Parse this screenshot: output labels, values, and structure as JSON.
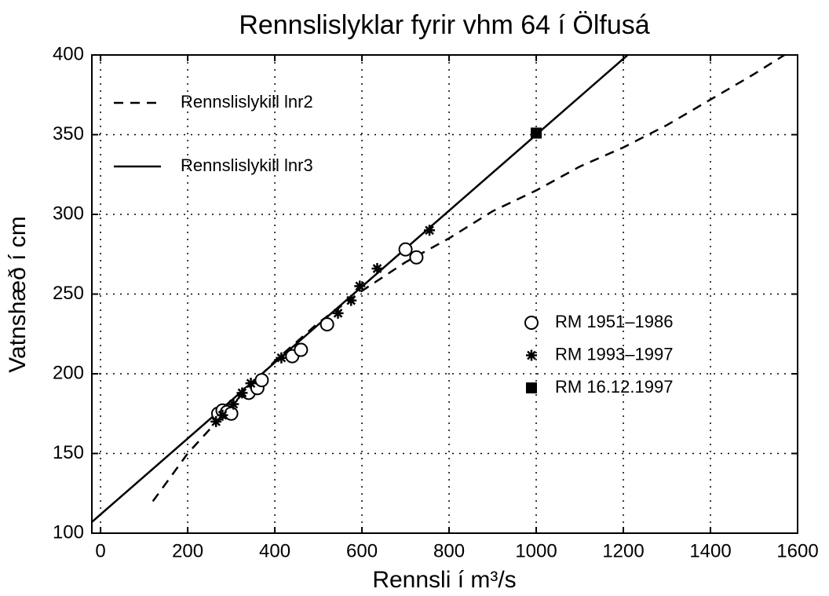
{
  "chart_data": {
    "type": "line",
    "title": "Rennslislyklar fyrir vhm 64 í Ölfusá",
    "x_label": "Rennsli í m³/s",
    "y_label": "Vatnshæð í cm",
    "xlim": [
      -20,
      1600
    ],
    "ylim": [
      100,
      400
    ],
    "xticks": [
      0,
      200,
      400,
      600,
      800,
      1000,
      1200,
      1400,
      1600
    ],
    "yticks": [
      100,
      150,
      200,
      250,
      300,
      350,
      400
    ],
    "grid": true,
    "series": [
      {
        "name": "Rennslislykill lnr2",
        "color": "#000000",
        "style": "dashed",
        "x": [
          120,
          200,
          300,
          400,
          500,
          600,
          700,
          800,
          900,
          1000,
          1100,
          1200,
          1300,
          1400,
          1500,
          1570
        ],
        "values": [
          120,
          150,
          180,
          208,
          232,
          252,
          270,
          285,
          302,
          315,
          330,
          342,
          356,
          372,
          388,
          400
        ]
      },
      {
        "name": "Rennslislykill lnr3",
        "color": "#000000",
        "style": "solid",
        "x": [
          -20,
          1210
        ],
        "values": [
          107,
          400
        ]
      },
      {
        "name": "RM 1951–1986",
        "color": "#000000",
        "marker": "circle",
        "x": [
          270,
          280,
          290,
          300,
          340,
          360,
          370,
          440,
          460,
          520,
          700,
          725
        ],
        "values": [
          175,
          177,
          176,
          175,
          188,
          191,
          196,
          211,
          215,
          231,
          278,
          273
        ]
      },
      {
        "name": "RM 1993–1997",
        "color": "#000000",
        "marker": "star",
        "x": [
          265,
          280,
          305,
          325,
          345,
          415,
          545,
          575,
          595,
          635,
          755
        ],
        "values": [
          170,
          174,
          181,
          188,
          194,
          210,
          238,
          246,
          255,
          266,
          290
        ]
      },
      {
        "name": "RM 16.12.1997",
        "color": "#000000",
        "marker": "square",
        "x": [
          1000
        ],
        "values": [
          351
        ]
      }
    ]
  }
}
